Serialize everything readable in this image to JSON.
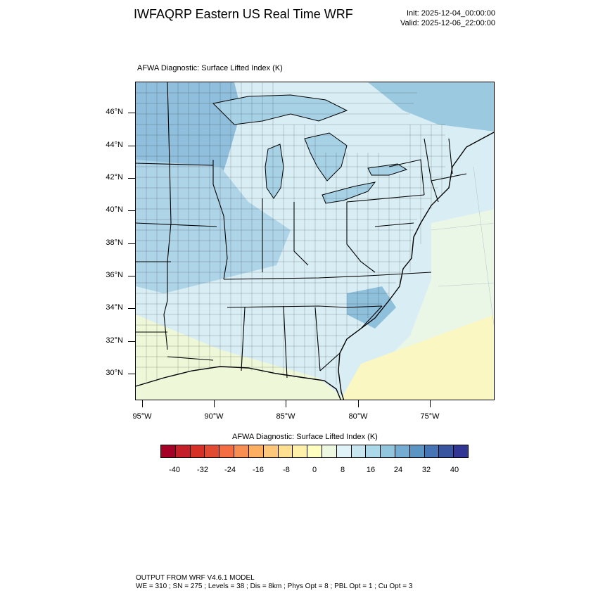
{
  "header": {
    "title": "IWFAQRP Eastern US Real Time WRF",
    "init": "Init: 2025-12-04_00:00:00",
    "valid": "Valid: 2025-12-06_22:00:00"
  },
  "plot": {
    "subtitle": "AFWA Diagnostic: Surface Lifted Index   (K)",
    "lat_labels": [
      "46°N",
      "44°N",
      "42°N",
      "40°N",
      "38°N",
      "36°N",
      "34°N",
      "32°N",
      "30°N"
    ],
    "lon_labels": [
      "95°W",
      "90°W",
      "85°W",
      "80°W",
      "75°W"
    ]
  },
  "colorbar": {
    "title": "AFWA Diagnostic: Surface Lifted Index  (K)",
    "labels": [
      "-40",
      "-32",
      "-24",
      "-16",
      "-8",
      "0",
      "8",
      "16",
      "24",
      "32",
      "40"
    ],
    "colors": [
      "#a50026",
      "#c4202a",
      "#d73027",
      "#e34a33",
      "#f46d43",
      "#f88e52",
      "#fdae61",
      "#fec779",
      "#fee090",
      "#fff0aa",
      "#ffffbf",
      "#eef8e0",
      "#e0f3f8",
      "#c7e6f0",
      "#abd9e9",
      "#92c5de",
      "#74add1",
      "#5b95c4",
      "#4575b4",
      "#3a55a0",
      "#313695"
    ]
  },
  "footer": {
    "line1": "OUTPUT FROM WRF V4.6.1 MODEL",
    "line2": "WE = 310 ; SN = 275 ; Levels = 38 ; Dis = 8km ; Phys Opt = 8 ; PBL Opt = 1 ; Cu Opt = 3"
  }
}
